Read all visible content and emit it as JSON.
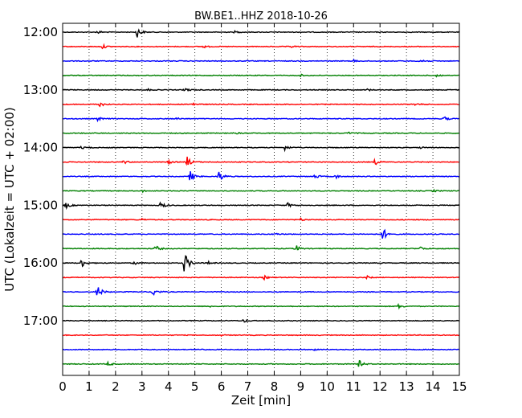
{
  "chart_data": {
    "type": "line",
    "title": "BW.BE1..HHZ 2018-10-26",
    "xlabel": "Zeit  [min]",
    "ylabel": "UTC (Lokalzeit = UTC + 02:00)",
    "xlim": [
      0,
      15
    ],
    "x_ticks": [
      "0",
      "1",
      "2",
      "3",
      "4",
      "5",
      "6",
      "7",
      "8",
      "9",
      "10",
      "11",
      "12",
      "13",
      "14",
      "15"
    ],
    "y_ticks": [
      "12:00",
      "13:00",
      "14:00",
      "15:00",
      "16:00",
      "17:00"
    ],
    "grid": "vertical dotted lines at each minute",
    "colors": [
      "#000000",
      "#ff0000",
      "#0000ff",
      "#008000"
    ],
    "rows": [
      {
        "start": "12:00",
        "color": "#000000",
        "events": [
          [
            1.3,
            0.25
          ],
          [
            2.8,
            0.8
          ],
          [
            6.5,
            0.15
          ]
        ]
      },
      {
        "start": "12:15",
        "color": "#ff0000",
        "events": [
          [
            1.5,
            0.3
          ],
          [
            5.3,
            0.2
          ],
          [
            8.6,
            0.2
          ]
        ]
      },
      {
        "start": "12:30",
        "color": "#0000ff",
        "events": [
          [
            13.5,
            0.45
          ],
          [
            11.0,
            0.15
          ]
        ]
      },
      {
        "start": "12:45",
        "color": "#008000",
        "events": [
          [
            14.1,
            0.3
          ],
          [
            9.0,
            0.15
          ]
        ]
      },
      {
        "start": "13:00",
        "color": "#000000",
        "events": [
          [
            4.6,
            0.35
          ],
          [
            3.2,
            0.15
          ],
          [
            11.5,
            0.15
          ]
        ]
      },
      {
        "start": "13:15",
        "color": "#ff0000",
        "events": [
          [
            1.4,
            0.35
          ],
          [
            4.9,
            0.25
          ],
          [
            13.3,
            0.2
          ]
        ]
      },
      {
        "start": "13:30",
        "color": "#0000ff",
        "events": [
          [
            1.3,
            0.35
          ],
          [
            14.4,
            0.35
          ],
          [
            4.3,
            0.15
          ]
        ]
      },
      {
        "start": "13:45",
        "color": "#008000",
        "events": [
          [
            6.5,
            0.15
          ],
          [
            10.8,
            0.15
          ]
        ]
      },
      {
        "start": "14:00",
        "color": "#000000",
        "events": [
          [
            8.4,
            0.35
          ],
          [
            0.7,
            0.2
          ],
          [
            13.5,
            0.15
          ]
        ]
      },
      {
        "start": "14:15",
        "color": "#ff0000",
        "events": [
          [
            4.7,
            0.8
          ],
          [
            2.3,
            0.3
          ],
          [
            11.8,
            0.45
          ],
          [
            4.0,
            0.3
          ]
        ]
      },
      {
        "start": "14:30",
        "color": "#0000ff",
        "events": [
          [
            4.8,
            0.9
          ],
          [
            5.9,
            0.9
          ],
          [
            9.5,
            0.4
          ],
          [
            10.3,
            0.3
          ]
        ]
      },
      {
        "start": "14:45",
        "color": "#008000",
        "events": [
          [
            3.0,
            0.15
          ],
          [
            14.0,
            0.2
          ]
        ]
      },
      {
        "start": "15:00",
        "color": "#000000",
        "events": [
          [
            3.7,
            0.55
          ],
          [
            8.5,
            0.35
          ],
          [
            0.1,
            0.5
          ]
        ]
      },
      {
        "start": "15:15",
        "color": "#ff0000",
        "events": [
          [
            9.0,
            0.2
          ],
          [
            3.0,
            0.15
          ]
        ]
      },
      {
        "start": "15:30",
        "color": "#0000ff",
        "events": [
          [
            12.1,
            1.0
          ],
          [
            8.0,
            0.2
          ]
        ]
      },
      {
        "start": "15:45",
        "color": "#008000",
        "events": [
          [
            3.5,
            0.5
          ],
          [
            8.8,
            0.6
          ],
          [
            13.5,
            0.3
          ]
        ]
      },
      {
        "start": "16:00",
        "color": "#000000",
        "events": [
          [
            4.6,
            1.9
          ],
          [
            0.7,
            0.7
          ],
          [
            2.7,
            0.3
          ],
          [
            5.5,
            0.2
          ]
        ]
      },
      {
        "start": "16:15",
        "color": "#ff0000",
        "events": [
          [
            7.6,
            0.3
          ],
          [
            11.5,
            0.2
          ]
        ]
      },
      {
        "start": "16:30",
        "color": "#0000ff",
        "events": [
          [
            1.3,
            1.1
          ],
          [
            3.4,
            0.7
          ]
        ]
      },
      {
        "start": "16:45",
        "color": "#008000",
        "events": [
          [
            12.7,
            0.35
          ],
          [
            5.5,
            0.15
          ]
        ]
      },
      {
        "start": "17:00",
        "color": "#000000",
        "events": [
          [
            6.8,
            0.3
          ]
        ]
      },
      {
        "start": "17:15",
        "color": "#ff0000",
        "events": [
          [
            6.0,
            0.1
          ]
        ]
      },
      {
        "start": "17:30",
        "color": "#0000ff",
        "events": [
          [
            5.0,
            0.15
          ],
          [
            9.5,
            0.1
          ]
        ]
      },
      {
        "start": "17:45",
        "color": "#008000",
        "events": [
          [
            1.7,
            0.3
          ],
          [
            11.2,
            0.55
          ]
        ]
      }
    ]
  }
}
